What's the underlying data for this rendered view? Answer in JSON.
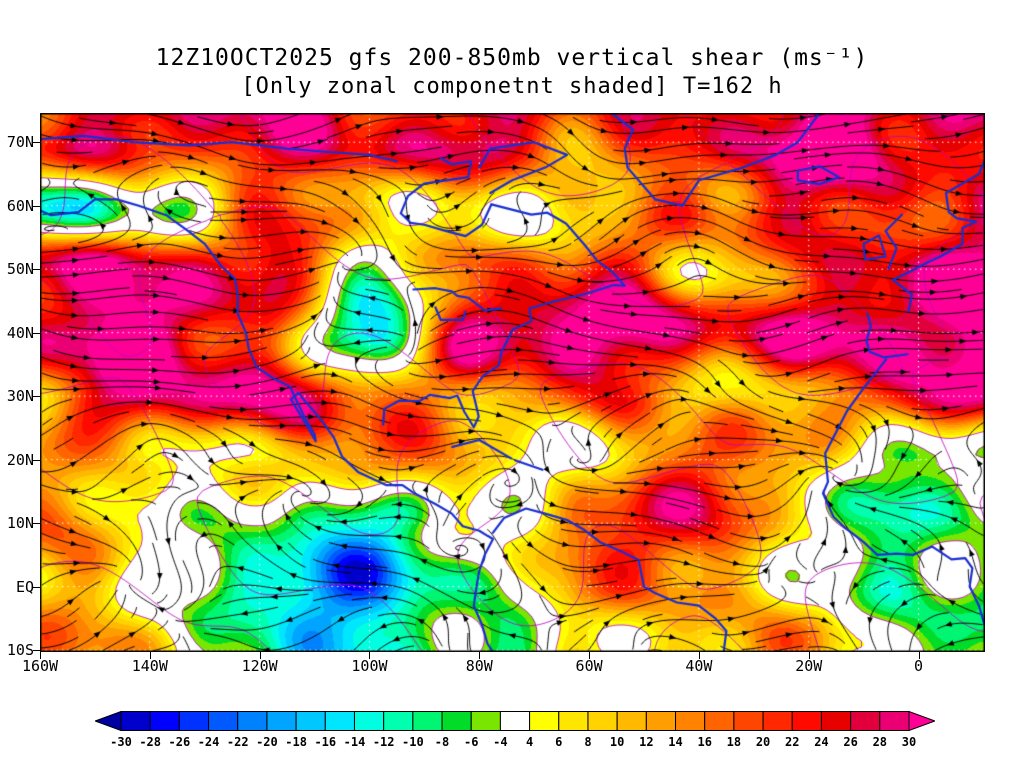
{
  "title": {
    "line1": "12Z10OCT2025 gfs 200-850mb vertical shear (ms⁻¹)",
    "line2": "[Only zonal componetnt shaded] T=162 h"
  },
  "chart_data": {
    "type": "heatmap",
    "title": "12Z10OCT2025 gfs 200-850mb vertical shear (ms⁻¹)",
    "subtitle": "[Only zonal componetnt shaded] T=162 h",
    "model": "gfs",
    "init_time": "12Z10OCT2025",
    "layer": "200-850mb",
    "forecast_hour_label": "T=162 h",
    "units": "ms⁻¹",
    "shaded_field": "zonal component of 200-850mb vertical wind shear",
    "overlays": [
      "streamlines-black-arrows",
      "coastlines-blue",
      "contours-magenta",
      "graticule-white-dotted"
    ],
    "lon_range": [
      -160,
      12.1
    ],
    "lat_range": [
      -10.3,
      74.6
    ],
    "x_ticks": [
      {
        "label": "160W",
        "lon": -160
      },
      {
        "label": "140W",
        "lon": -140
      },
      {
        "label": "120W",
        "lon": -120
      },
      {
        "label": "100W",
        "lon": -100
      },
      {
        "label": "80W",
        "lon": -80
      },
      {
        "label": "60W",
        "lon": -60
      },
      {
        "label": "40W",
        "lon": -40
      },
      {
        "label": "20W",
        "lon": -20
      },
      {
        "label": "0",
        "lon": 0
      }
    ],
    "y_ticks": [
      {
        "label": "70N",
        "lat": 70
      },
      {
        "label": "60N",
        "lat": 60
      },
      {
        "label": "50N",
        "lat": 50
      },
      {
        "label": "40N",
        "lat": 40
      },
      {
        "label": "30N",
        "lat": 30
      },
      {
        "label": "20N",
        "lat": 20
      },
      {
        "label": "10N",
        "lat": 10
      },
      {
        "label": "EQ",
        "lat": 0
      },
      {
        "label": "10S",
        "lat": -10
      }
    ],
    "approx_zonal_shear_grid": {
      "note": "values estimated visually from shading (ms^-1)",
      "lons": [
        -160,
        -140,
        -120,
        -100,
        -80,
        -60,
        -40,
        -20,
        0
      ],
      "lats": [
        70,
        60,
        50,
        40,
        30,
        20,
        10,
        0,
        -10
      ],
      "values": [
        [
          24,
          22,
          30,
          26,
          24,
          18,
          26,
          32,
          26
        ],
        [
          -14,
          -6,
          18,
          8,
          2,
          10,
          16,
          22,
          24
        ],
        [
          32,
          30,
          24,
          0,
          18,
          22,
          6,
          20,
          32
        ],
        [
          28,
          32,
          16,
          -14,
          30,
          32,
          28,
          32,
          30
        ],
        [
          10,
          30,
          32,
          20,
          8,
          22,
          12,
          8,
          28
        ],
        [
          12,
          8,
          6,
          16,
          8,
          2,
          22,
          6,
          -4
        ],
        [
          18,
          6,
          -10,
          -14,
          4,
          16,
          26,
          2,
          -8
        ],
        [
          12,
          0,
          -16,
          -18,
          -6,
          12,
          18,
          0,
          -10
        ],
        [
          10,
          10,
          -8,
          -14,
          -10,
          4,
          14,
          10,
          -6
        ]
      ]
    },
    "colorbar": {
      "levels": [
        -30,
        -28,
        -26,
        -24,
        -22,
        -20,
        -18,
        -16,
        -14,
        -12,
        -10,
        -8,
        -6,
        -4,
        4,
        6,
        8,
        10,
        12,
        14,
        16,
        18,
        20,
        22,
        24,
        26,
        28,
        30
      ],
      "tick_labels": [
        "-30",
        "-28",
        "-26",
        "-24",
        "-22",
        "-20",
        "-18",
        "-16",
        "-14",
        "-12",
        "-10",
        "-8",
        "-6",
        "-4",
        "4",
        "6",
        "8",
        "10",
        "12",
        "14",
        "16",
        "18",
        "20",
        "22",
        "24",
        "26",
        "28",
        "30"
      ],
      "cell_colors": [
        "#0000CD",
        "#0000FF",
        "#0032FF",
        "#005AFF",
        "#0082FF",
        "#00A5FF",
        "#00C8FF",
        "#00E6FF",
        "#00FFE1",
        "#00FFAF",
        "#00F573",
        "#00DC28",
        "#78E600",
        "#FFFFFF",
        "#FFFF00",
        "#FFE600",
        "#FFD200",
        "#FFB900",
        "#FF9E00",
        "#FF8200",
        "#FF6400",
        "#FF4600",
        "#FF2800",
        "#FF0A00",
        "#E60000",
        "#E1003C",
        "#EB0073"
      ],
      "under_color": "#0000A0",
      "over_color": "#FF0096",
      "outline_color": "#000000"
    },
    "style_colors": {
      "streamlines": "#000000",
      "coastlines": "#1A2FD0",
      "thin_contours": "#BE00BE",
      "graticule": "#FFFFFF"
    }
  }
}
